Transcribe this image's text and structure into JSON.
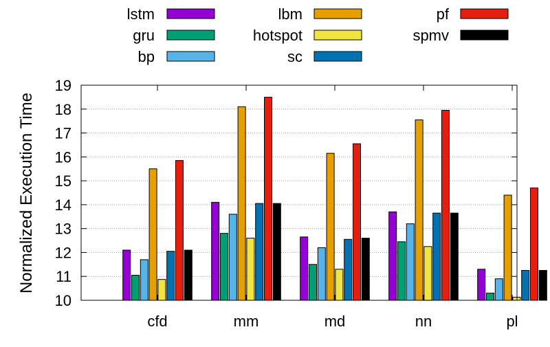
{
  "chart_data": {
    "type": "bar",
    "title": "",
    "xlabel": "",
    "ylabel": "Normalized Execution Time",
    "ylim": [
      10,
      19
    ],
    "yticks": [
      10,
      11,
      12,
      13,
      14,
      15,
      16,
      17,
      18,
      19
    ],
    "grid": true,
    "legend_position": "top",
    "categories": [
      "cfd",
      "mm",
      "md",
      "nn",
      "pl"
    ],
    "series": [
      {
        "name": "lstm",
        "color": "#9400d3",
        "values": [
          12.1,
          14.1,
          12.65,
          13.7,
          11.3
        ]
      },
      {
        "name": "gru",
        "color": "#009e73",
        "values": [
          11.05,
          12.8,
          11.5,
          12.45,
          10.3
        ]
      },
      {
        "name": "bp",
        "color": "#56b4e9",
        "values": [
          11.7,
          13.6,
          12.2,
          13.2,
          10.9
        ]
      },
      {
        "name": "lbm",
        "color": "#e69f00",
        "values": [
          15.5,
          18.1,
          16.15,
          17.55,
          14.4
        ]
      },
      {
        "name": "hotspot",
        "color": "#f0e442",
        "values": [
          10.87,
          12.6,
          11.3,
          12.25,
          10.13
        ]
      },
      {
        "name": "sc",
        "color": "#0072b2",
        "values": [
          12.05,
          14.05,
          12.55,
          13.65,
          11.25
        ]
      },
      {
        "name": "pf",
        "color": "#e51e10",
        "values": [
          15.85,
          18.5,
          16.55,
          17.95,
          14.7
        ]
      },
      {
        "name": "spmv",
        "color": "#000000",
        "values": [
          12.1,
          14.05,
          12.6,
          13.65,
          11.25
        ]
      }
    ]
  }
}
